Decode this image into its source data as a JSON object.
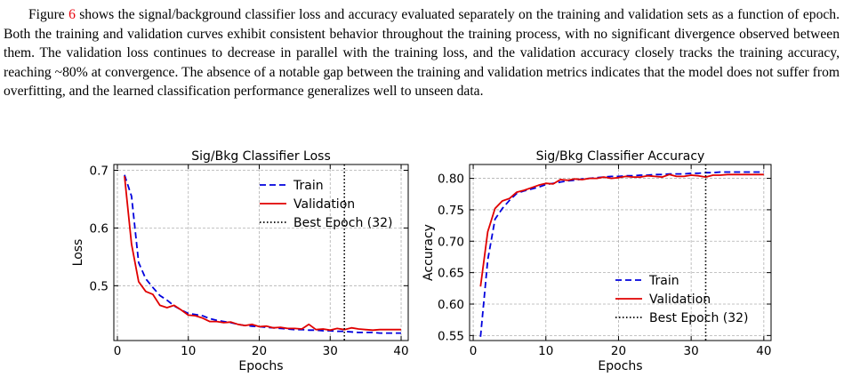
{
  "paragraph": {
    "before_ref": "Figure ",
    "ref": "6",
    "after_ref": " shows the signal/background classifier loss and accuracy evaluated separately on the training and validation sets as a function of epoch. Both the training and validation curves exhibit consistent behavior throughout the training process, with no significant divergence observed between them. The validation loss continues to decrease in parallel with the training loss, and the validation accuracy closely tracks the training accuracy, reaching ~80% at convergence. The absence of a notable gap between the training and validation metrics indicates that the model does not suffer from overfitting, and the learned classification performance generalizes well to unseen data.",
    "ref_color": "#e8000b"
  },
  "chart_data": [
    {
      "type": "line",
      "title": "Sig/Bkg Classifier Loss",
      "xlabel": "Epochs",
      "ylabel": "Loss",
      "xlim": [
        -0.5,
        41
      ],
      "ylim": [
        0.405,
        0.71
      ],
      "xticks": [
        0,
        10,
        20,
        30,
        40
      ],
      "yticks": [
        0.5,
        0.6,
        0.7
      ],
      "ytick_labels": [
        "0.5",
        "0.6",
        "0.7"
      ],
      "grid": true,
      "legend_position": "top-right",
      "x": [
        1,
        2,
        3,
        4,
        5,
        6,
        7,
        8,
        9,
        10,
        11,
        12,
        13,
        14,
        15,
        16,
        17,
        18,
        19,
        20,
        21,
        22,
        23,
        24,
        25,
        26,
        27,
        28,
        29,
        30,
        31,
        32,
        33,
        34,
        35,
        36,
        37,
        38,
        39,
        40
      ],
      "series": [
        {
          "name": "Train",
          "color": "#0000dd",
          "style": "dashed",
          "values": [
            0.692,
            0.655,
            0.54,
            0.512,
            0.497,
            0.483,
            0.475,
            0.465,
            0.458,
            0.452,
            0.45,
            0.448,
            0.443,
            0.44,
            0.438,
            0.436,
            0.433,
            0.431,
            0.43,
            0.429,
            0.428,
            0.427,
            0.426,
            0.425,
            0.424,
            0.424,
            0.423,
            0.423,
            0.422,
            0.422,
            0.421,
            0.421,
            0.42,
            0.419,
            0.419,
            0.419,
            0.418,
            0.418,
            0.418,
            0.418
          ]
        },
        {
          "name": "Validation",
          "color": "#e00000",
          "style": "solid",
          "values": [
            0.69,
            0.572,
            0.507,
            0.49,
            0.485,
            0.466,
            0.462,
            0.466,
            0.458,
            0.449,
            0.448,
            0.444,
            0.438,
            0.438,
            0.436,
            0.437,
            0.433,
            0.431,
            0.433,
            0.429,
            0.43,
            0.427,
            0.428,
            0.426,
            0.426,
            0.425,
            0.433,
            0.424,
            0.425,
            0.423,
            0.426,
            0.424,
            0.427,
            0.425,
            0.424,
            0.423,
            0.424,
            0.424,
            0.424,
            0.424
          ]
        }
      ],
      "vlines": [
        {
          "name": "Best Epoch (32)",
          "x": 32,
          "style": "dotted",
          "color": "#000000"
        }
      ]
    },
    {
      "type": "line",
      "title": "Sig/Bkg Classifier Accuracy",
      "xlabel": "Epochs",
      "ylabel": "Accuracy",
      "xlim": [
        -0.5,
        41
      ],
      "ylim": [
        0.542,
        0.822
      ],
      "xticks": [
        0,
        10,
        20,
        30,
        40
      ],
      "yticks": [
        0.55,
        0.6,
        0.65,
        0.7,
        0.75,
        0.8
      ],
      "ytick_labels": [
        "0.55",
        "0.60",
        "0.65",
        "0.70",
        "0.75",
        "0.80"
      ],
      "grid": true,
      "legend_position": "bottom-right",
      "x": [
        1,
        2,
        3,
        4,
        5,
        6,
        7,
        8,
        9,
        10,
        11,
        12,
        13,
        14,
        15,
        16,
        17,
        18,
        19,
        20,
        21,
        22,
        23,
        24,
        25,
        26,
        27,
        28,
        29,
        30,
        31,
        32,
        33,
        34,
        35,
        36,
        37,
        38,
        39,
        40
      ],
      "series": [
        {
          "name": "Train",
          "color": "#0000dd",
          "style": "dashed",
          "values": [
            0.548,
            0.67,
            0.735,
            0.752,
            0.765,
            0.776,
            0.78,
            0.783,
            0.786,
            0.79,
            0.792,
            0.794,
            0.796,
            0.797,
            0.799,
            0.8,
            0.801,
            0.802,
            0.803,
            0.803,
            0.804,
            0.804,
            0.805,
            0.805,
            0.806,
            0.806,
            0.807,
            0.807,
            0.807,
            0.808,
            0.808,
            0.809,
            0.809,
            0.81,
            0.81,
            0.81,
            0.81,
            0.81,
            0.81,
            0.81
          ]
        },
        {
          "name": "Validation",
          "color": "#e00000",
          "style": "solid",
          "values": [
            0.628,
            0.715,
            0.752,
            0.764,
            0.768,
            0.778,
            0.781,
            0.785,
            0.789,
            0.792,
            0.791,
            0.798,
            0.797,
            0.799,
            0.798,
            0.8,
            0.8,
            0.802,
            0.8,
            0.801,
            0.803,
            0.802,
            0.802,
            0.804,
            0.803,
            0.802,
            0.806,
            0.803,
            0.803,
            0.805,
            0.804,
            0.802,
            0.805,
            0.805,
            0.806,
            0.806,
            0.806,
            0.806,
            0.806,
            0.806
          ]
        }
      ],
      "vlines": [
        {
          "name": "Best Epoch (32)",
          "x": 32,
          "style": "dotted",
          "color": "#000000"
        }
      ]
    }
  ]
}
